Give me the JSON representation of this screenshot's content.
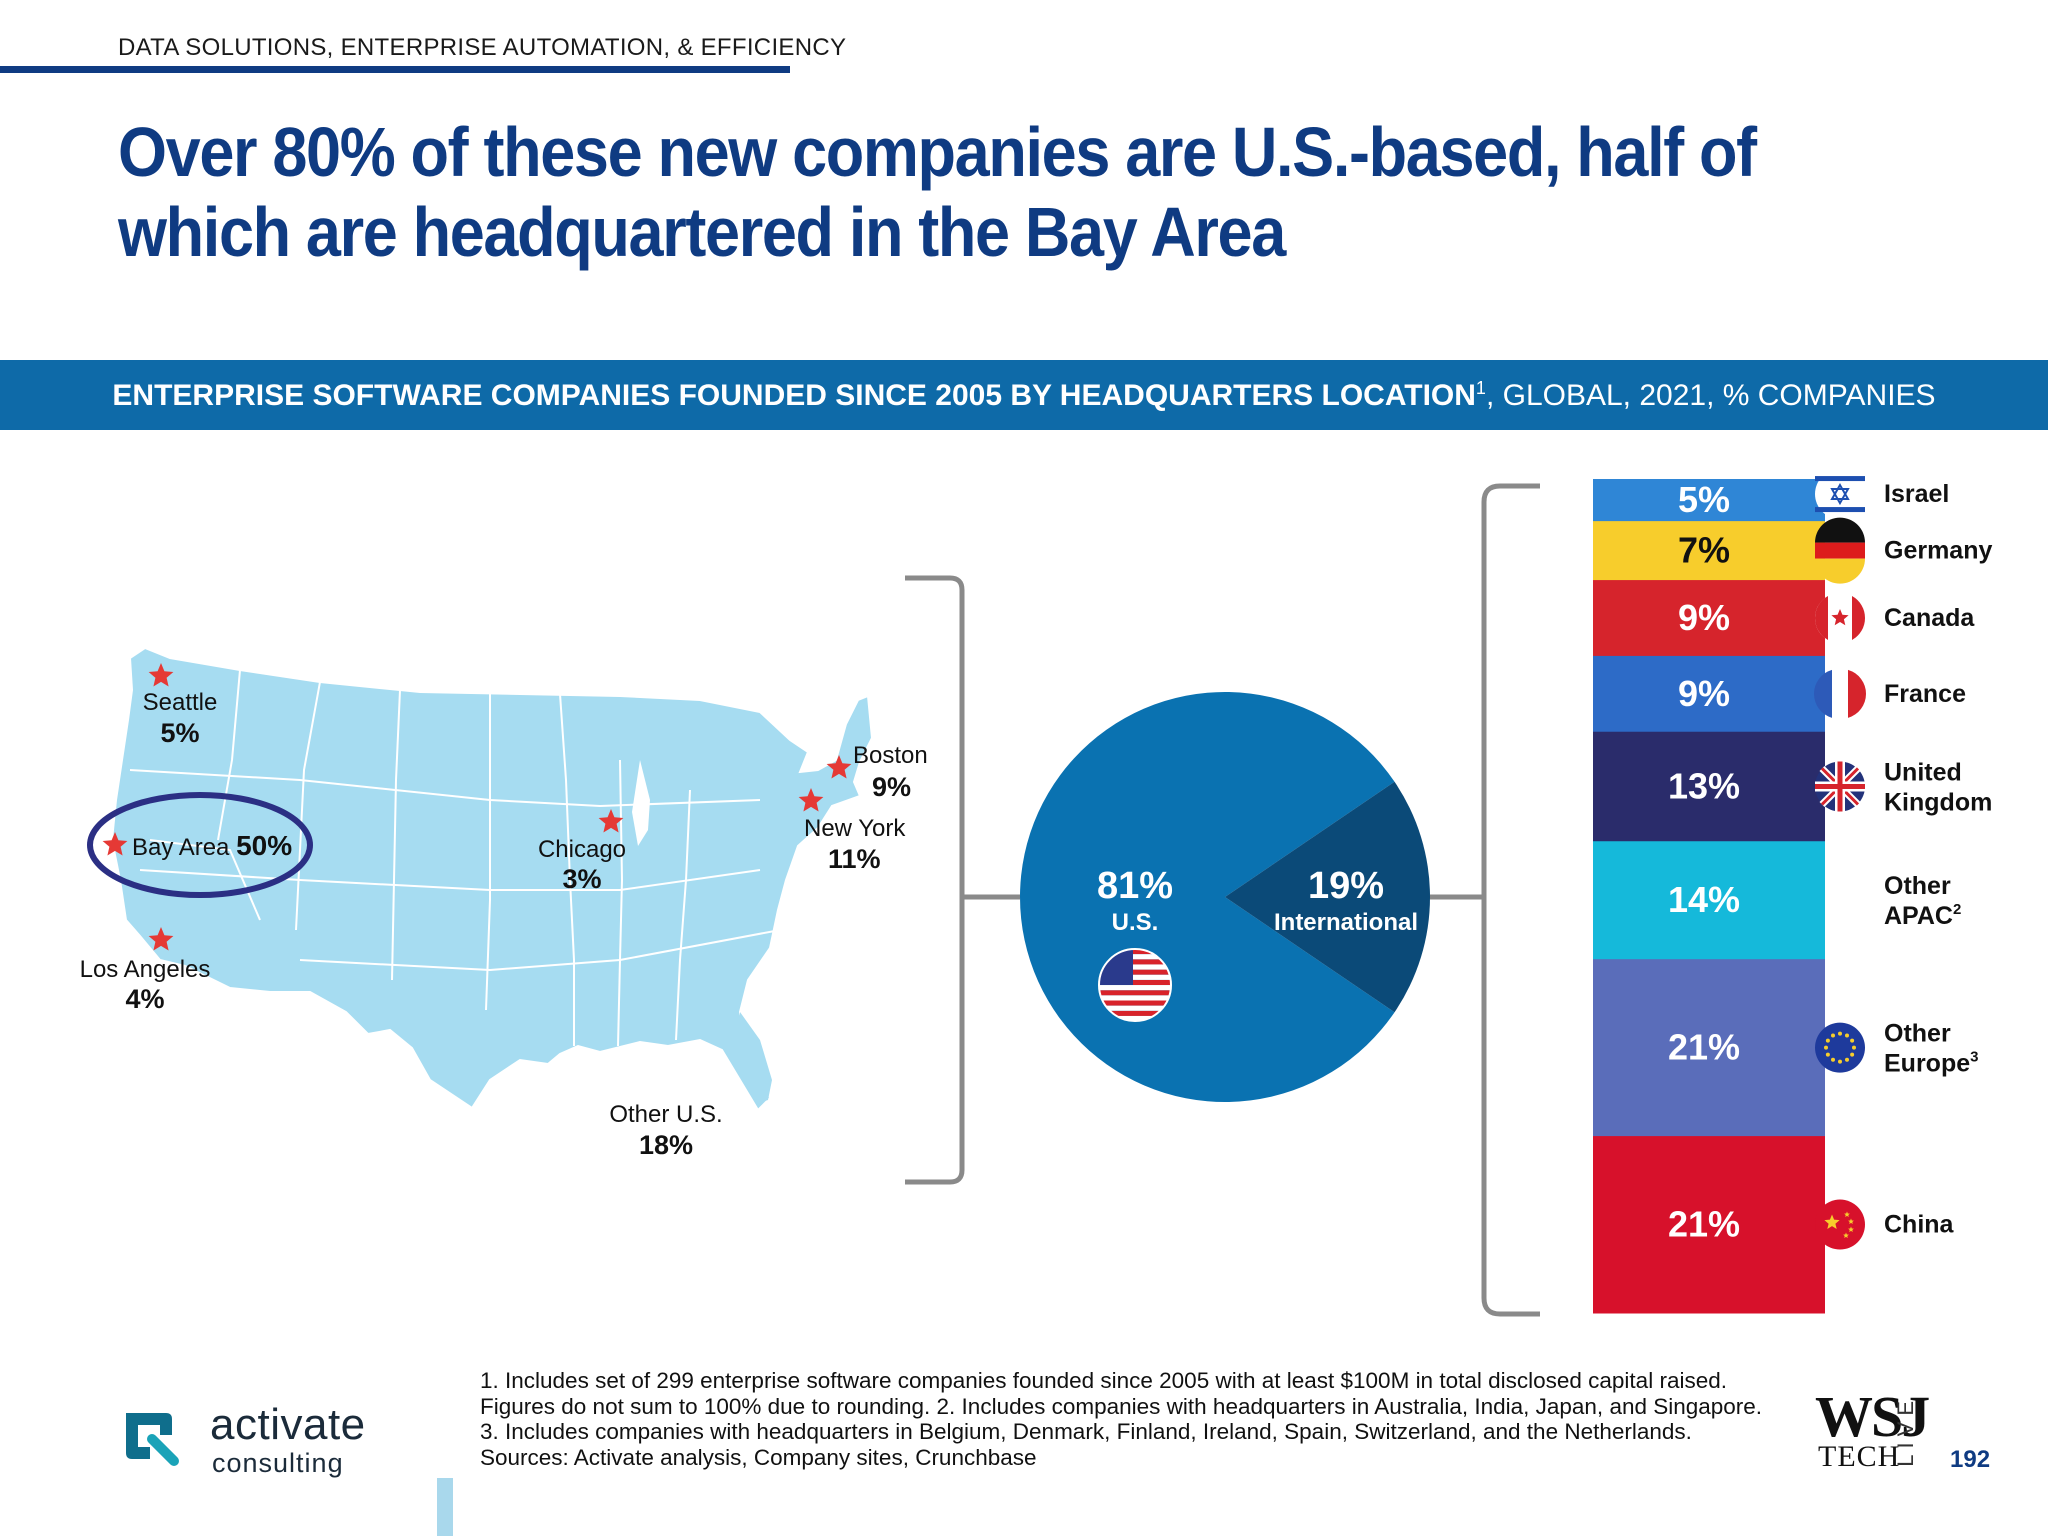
{
  "section_label": "DATA SOLUTIONS, ENTERPRISE AUTOMATION, & EFFICIENCY",
  "headline": "Over 80% of these new companies are U.S.-based, half of which are headquartered in the Bay Area",
  "banner": {
    "bold_text": "ENTERPRISE SOFTWARE COMPANIES FOUNDED SINCE 2005 BY HEADQUARTERS LOCATION",
    "superscript": "1",
    "rest_text": ", GLOBAL, 2021, % COMPANIES"
  },
  "colors": {
    "brand_navy": "#0f3b82",
    "banner_blue": "#0e6aa8",
    "map_fill": "#a6dcf1",
    "pie_us": "#0a72b1",
    "pie_international": "#0b4a78",
    "star_red": "#e53935"
  },
  "chart_data": [
    {
      "type": "map",
      "region": "United States",
      "cities": [
        {
          "name": "Seattle",
          "value": "5%"
        },
        {
          "name": "Bay Area",
          "value": "50%",
          "highlighted": true
        },
        {
          "name": "Los Angeles",
          "value": "4%"
        },
        {
          "name": "Chicago",
          "value": "3%"
        },
        {
          "name": "Boston",
          "value": "9%"
        },
        {
          "name": "New York",
          "value": "11%"
        },
        {
          "name": "Other U.S.",
          "value": "18%",
          "no_marker": true
        }
      ]
    },
    {
      "type": "pie",
      "slices": [
        {
          "label": "U.S.",
          "value": 81,
          "display": "81%",
          "icon": "us-flag-icon"
        },
        {
          "label": "International",
          "value": 19,
          "display": "19%"
        }
      ]
    },
    {
      "type": "bar",
      "stacked": true,
      "categories": [
        "Israel",
        "Germany",
        "Canada",
        "France",
        "United Kingdom",
        "Other APAC",
        "Other Europe",
        "China"
      ],
      "values": [
        5,
        7,
        9,
        9,
        13,
        14,
        21,
        21
      ],
      "labels": [
        "5%",
        "7%",
        "9%",
        "9%",
        "13%",
        "14%",
        "21%",
        "21%"
      ],
      "superscripts": [
        "",
        "",
        "",
        "",
        "",
        "2",
        "3",
        ""
      ],
      "colors": [
        "#2f86d6",
        "#f7cd2c",
        "#d6242c",
        "#2d6bc7",
        "#2a2c6b",
        "#15b9da",
        "#5a6dba",
        "#d7112b"
      ],
      "flags": [
        "israel-flag-icon",
        "germany-flag-icon",
        "canada-flag-icon",
        "france-flag-icon",
        "uk-flag-icon",
        "",
        "eu-flag-icon",
        "china-flag-icon"
      ]
    }
  ],
  "footnotes": [
    "1. Includes set of 299 enterprise software companies founded since 2005 with at least $100M in total disclosed capital raised.",
    "Figures do not sum to 100% due to rounding.  2. Includes companies with headquarters in Australia, India, Japan, and Singapore.",
    "3. Includes companies with headquarters in Belgium, Denmark, Finland, Ireland, Spain, Switzerland, and the Netherlands.",
    "Sources: Activate analysis, Company sites, Crunchbase"
  ],
  "logo": {
    "name": "activate",
    "sub": "consulting"
  },
  "wsj": {
    "main": "WSJ",
    "sub": "TECH",
    "vertical": "LIVE"
  },
  "page_number": "192"
}
